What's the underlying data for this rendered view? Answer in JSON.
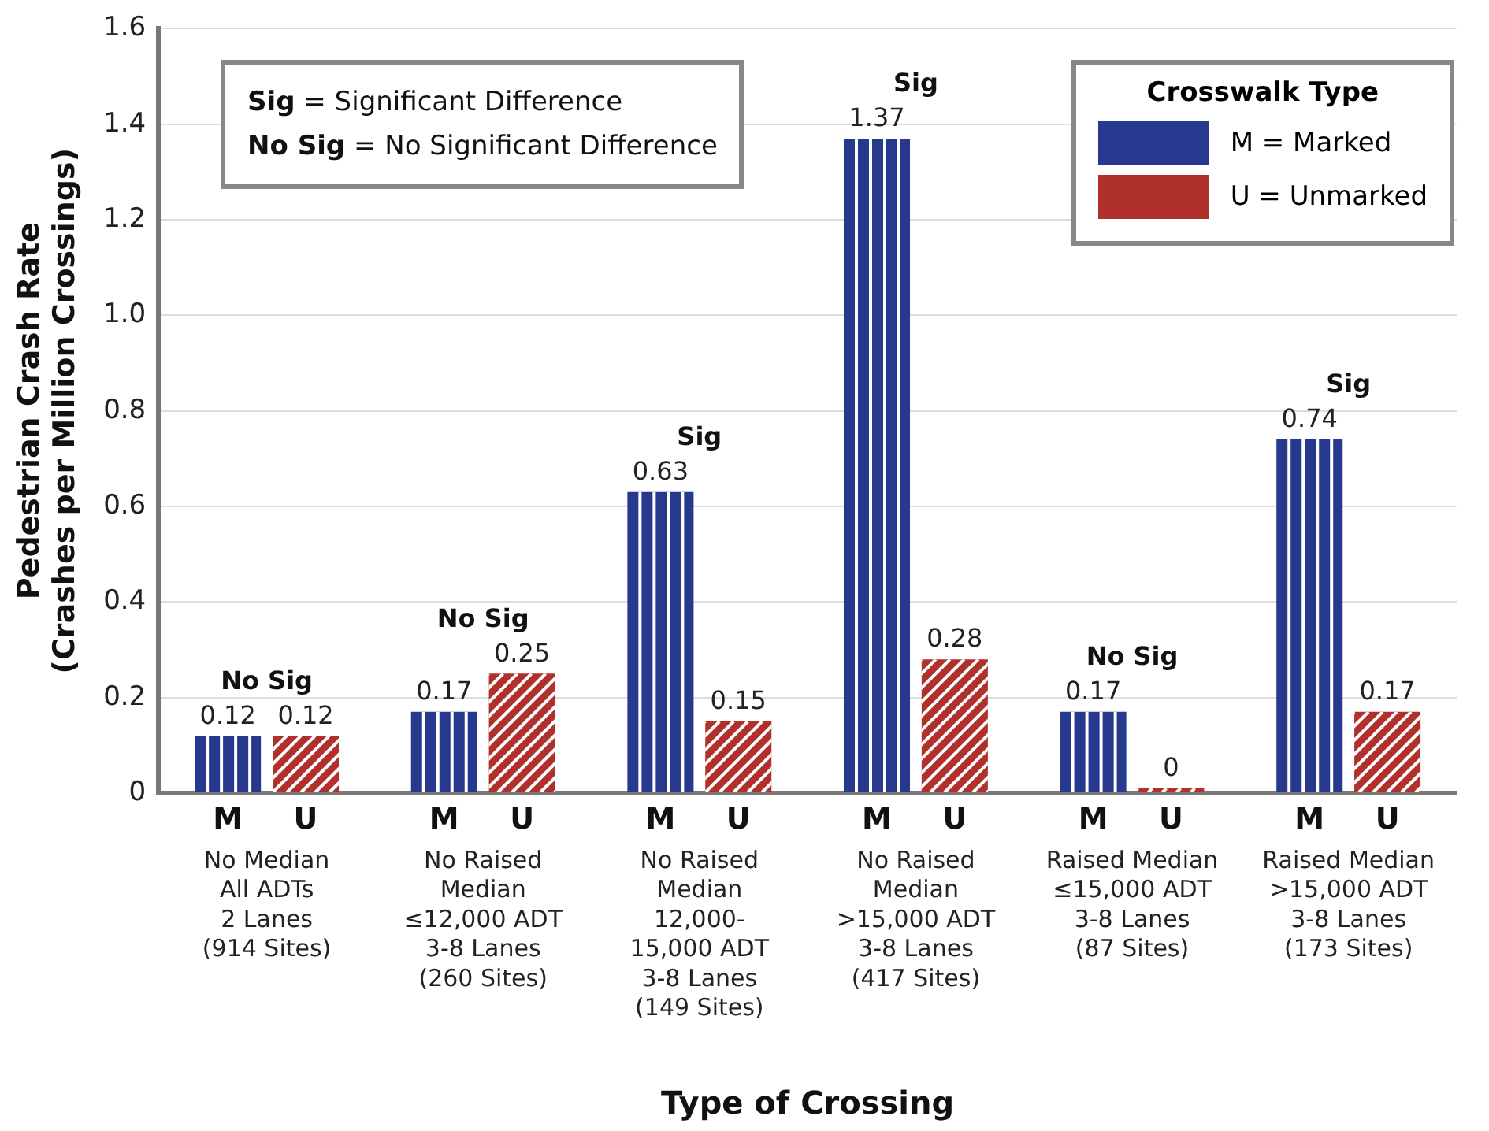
{
  "chart_data": {
    "type": "bar",
    "xlabel": "Type of Crossing",
    "ylabel": "Pedestrian Crash Rate\n(Crashes per Million Crossings)",
    "legend_title": "Crosswalk Type",
    "legend": "top right",
    "grid": "y",
    "data_labels": true,
    "categories": [
      "No Median\nAll ADTs\n2 Lanes\n(914 Sites)",
      "No Raised\nMedian\n≤12,000 ADT\n3-8 Lanes\n(260 Sites)",
      "No Raised\nMedian\n12,000-\n15,000 ADT\n3-8 Lanes\n(149 Sites)",
      "No Raised\nMedian\n>15,000 ADT\n3-8 Lanes\n(417 Sites)",
      "Raised Median\n≤15,000 ADT\n3-8 Lanes\n(87 Sites)",
      "Raised Median\n>15,000 ADT\n3-8 Lanes\n(173 Sites)"
    ],
    "series": [
      {
        "name": "M = Marked",
        "color": "#27388f",
        "values": [
          0.12,
          0.17,
          0.63,
          1.37,
          0.17,
          0.74
        ]
      },
      {
        "name": "U = Unmarked",
        "color": "#b0302b",
        "values": [
          0.12,
          0.25,
          0.15,
          0.28,
          0,
          0.17
        ]
      }
    ],
    "ylim": [
      0,
      1.6
    ],
    "yticks": [
      0,
      0.2,
      0.4,
      0.6,
      0.8,
      {
        "value": 1,
        "label": "1.0"
      },
      1.2,
      1.4,
      1.6
    ],
    "annotations": [
      "Sig = Significant Difference",
      "No Sig = No Significant Difference",
      {
        "text": "No Sig",
        "x": "No Median\nAll ADTs\n2 Lanes\n(914 Sites)",
        "y": 0.12
      },
      {
        "text": "No Sig",
        "x": "No Raised\nMedian\n≤12,000 ADT\n3-8 Lanes\n(260 Sites)",
        "y": 0.25
      },
      {
        "text": "Sig",
        "x": "No Raised\nMedian\n12,000-\n15,000 ADT\n3-8 Lanes\n(149 Sites)",
        "y": 0.63
      },
      {
        "text": "Sig",
        "x": "No Raised\nMedian\n>15,000 ADT\n3-8 Lanes\n(417 Sites)",
        "y": 1.37
      },
      {
        "text": "No Sig",
        "x": "Raised Median\n≤15,000 ADT\n3-8 Lanes\n(87 Sites)",
        "y": 0.17
      },
      {
        "text": "Sig",
        "x": "Raised Median\n>15,000 ADT\n3-8 Lanes\n(173 Sites)",
        "y": 0.74
      },
      {
        "text": "M",
        "x": "No Median\nAll ADTs\n2 Lanes\n(914 Sites)",
        "y": 0
      },
      {
        "text": "U",
        "x": "No Median\nAll ADTs\n2 Lanes\n(914 Sites)",
        "y": 0
      },
      {
        "text": "M",
        "x": "No Raised\nMedian\n≤12,000 ADT\n3-8 Lanes\n(260 Sites)",
        "y": 0
      },
      {
        "text": "U",
        "x": "No Raised\nMedian\n≤12,000 ADT\n3-8 Lanes\n(260 Sites)",
        "y": 0
      },
      {
        "text": "M",
        "x": "No Raised\nMedian\n12,000-\n15,000 ADT\n3-8 Lanes\n(149 Sites)",
        "y": 0
      },
      {
        "text": "U",
        "x": "No Raised\nMedian\n12,000-\n15,000 ADT\n3-8 Lanes\n(149 Sites)",
        "y": 0
      },
      {
        "text": "M",
        "x": "No Raised\nMedian\n>15,000 ADT\n3-8 Lanes\n(417 Sites)",
        "y": 0
      },
      {
        "text": "U",
        "x": "No Raised\nMedian\n>15,000 ADT\n3-8 Lanes\n(417 Sites)",
        "y": 0
      },
      {
        "text": "M",
        "x": "Raised Median\n≤15,000 ADT\n3-8 Lanes\n(87 Sites)",
        "y": 0
      },
      {
        "text": "U",
        "x": "Raised Median\n≤15,000 ADT\n3-8 Lanes\n(87 Sites)",
        "y": 0
      },
      {
        "text": "M",
        "x": "Raised Median\n>15,000 ADT\n3-8 Lanes\n(173 Sites)",
        "y": 0
      },
      {
        "text": "U",
        "x": "Raised Median\n>15,000 ADT\n3-8 Lanes\n(173 Sites)",
        "y": 0
      }
    ]
  }
}
